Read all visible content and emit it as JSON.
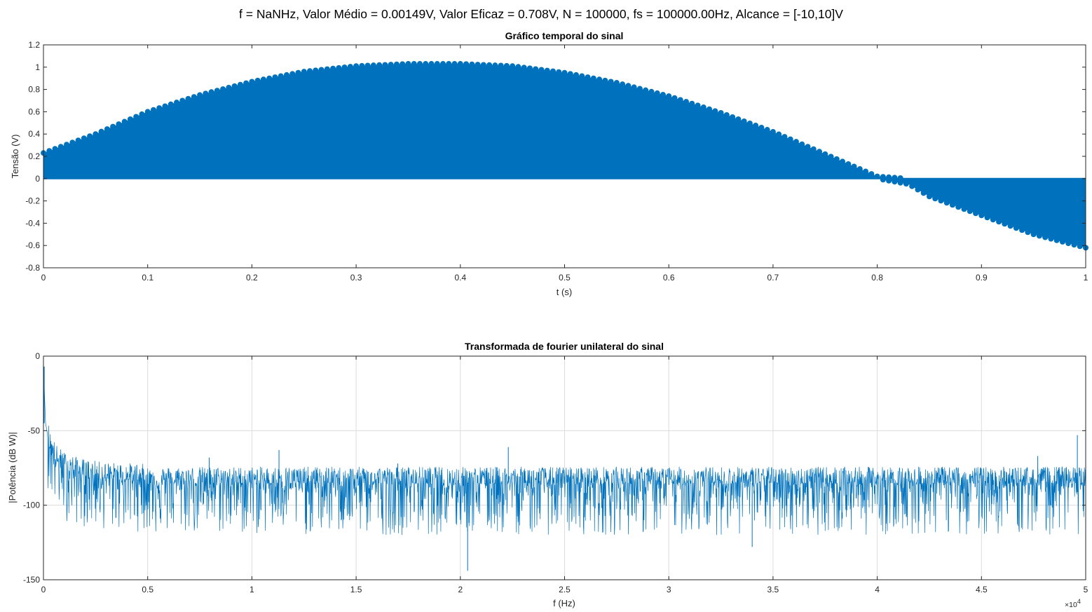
{
  "suptitle": "f = NaNHz, Valor Médio = 0.00149V, Valor Eficaz = 0.708V, N = 100000, fs = 100000.00Hz, Alcance = [-10,10]V",
  "colors": {
    "series": "#0072bd",
    "axis": "#262626",
    "grid": "#dcdcdc"
  },
  "chart_data": [
    {
      "type": "scatter",
      "title": "Gráfico temporal do sinal",
      "xlabel": "t (s)",
      "ylabel": "Tensão (V)",
      "xlim": [
        0,
        1
      ],
      "ylim": [
        -0.8,
        1.2
      ],
      "grid": false,
      "xticks": [
        0,
        0.1,
        0.2,
        0.3,
        0.4,
        0.5,
        0.6,
        0.7,
        0.8,
        0.9,
        1
      ],
      "yticks": [
        -0.8,
        -0.6,
        -0.4,
        -0.2,
        0,
        0.2,
        0.4,
        0.6,
        0.8,
        1,
        1.2
      ],
      "xticklabels": [
        "0",
        "0.1",
        "0.2",
        "0.3",
        "0.4",
        "0.5",
        "0.6",
        "0.7",
        "0.8",
        "0.9",
        "1"
      ],
      "yticklabels": [
        "-0.8",
        "-0.6",
        "-0.4",
        "-0.2",
        "0",
        "0.2",
        "0.4",
        "0.6",
        "0.8",
        "1",
        "1.2"
      ],
      "series": [
        {
          "marker": "filled-circle",
          "envelope_upper": {
            "x": [
              0,
              0.05,
              0.1,
              0.15,
              0.2,
              0.25,
              0.3,
              0.35,
              0.4,
              0.45,
              0.5,
              0.55,
              0.6,
              0.65,
              0.7,
              0.75,
              0.8,
              0.83,
              0.85,
              0.9,
              0.95,
              1
            ],
            "y": [
              0.23,
              0.4,
              0.6,
              0.75,
              0.87,
              0.96,
              1.01,
              1.03,
              1.03,
              1.01,
              0.95,
              0.86,
              0.74,
              0.59,
              0.42,
              0.22,
              0.02,
              0,
              0,
              0,
              0,
              0
            ]
          },
          "envelope_lower": {
            "x": [
              0,
              0.8,
              0.83,
              0.85,
              0.9,
              0.95,
              1
            ],
            "y": [
              0,
              0,
              -0.05,
              -0.16,
              -0.33,
              -0.5,
              -0.62
            ]
          }
        }
      ]
    },
    {
      "type": "line",
      "title": "Transformada de fourier unilateral do sinal",
      "xlabel": "f (Hz)",
      "ylabel": "|Potência (dB W)|",
      "xlim": [
        0,
        50000
      ],
      "ylim": [
        -150,
        0
      ],
      "grid": true,
      "xticks": [
        0,
        5000,
        10000,
        15000,
        20000,
        25000,
        30000,
        35000,
        40000,
        45000,
        50000
      ],
      "yticks": [
        -150,
        -100,
        -50,
        0
      ],
      "xticklabels": [
        "0",
        "0.5",
        "1",
        "1.5",
        "2",
        "2.5",
        "3",
        "3.5",
        "4",
        "4.5",
        "5"
      ],
      "yticklabels": [
        "-150",
        "-100",
        "-50",
        "0"
      ],
      "x_exponent": "×10",
      "x_exponent_power": "4",
      "series": [
        {
          "dc_peak": -7,
          "decay": {
            "x": [
              0,
              100,
              300,
              600,
              1000,
              1500,
              2000,
              3000,
              5000
            ],
            "y": [
              -7,
              -45,
              -60,
              -70,
              -75,
              -78,
              -80,
              -82,
              -83
            ]
          },
          "noise_floor_mean": -85,
          "noise_floor_spread": [
            -120,
            -73
          ],
          "spikes": [
            {
              "x": 7950,
              "y": -68
            },
            {
              "x": 11300,
              "y": -63
            },
            {
              "x": 17000,
              "y": -72
            },
            {
              "x": 20350,
              "y": -144
            },
            {
              "x": 22300,
              "y": -61
            },
            {
              "x": 34000,
              "y": -128
            },
            {
              "x": 47700,
              "y": -67
            },
            {
              "x": 49600,
              "y": -53
            }
          ]
        }
      ]
    }
  ]
}
